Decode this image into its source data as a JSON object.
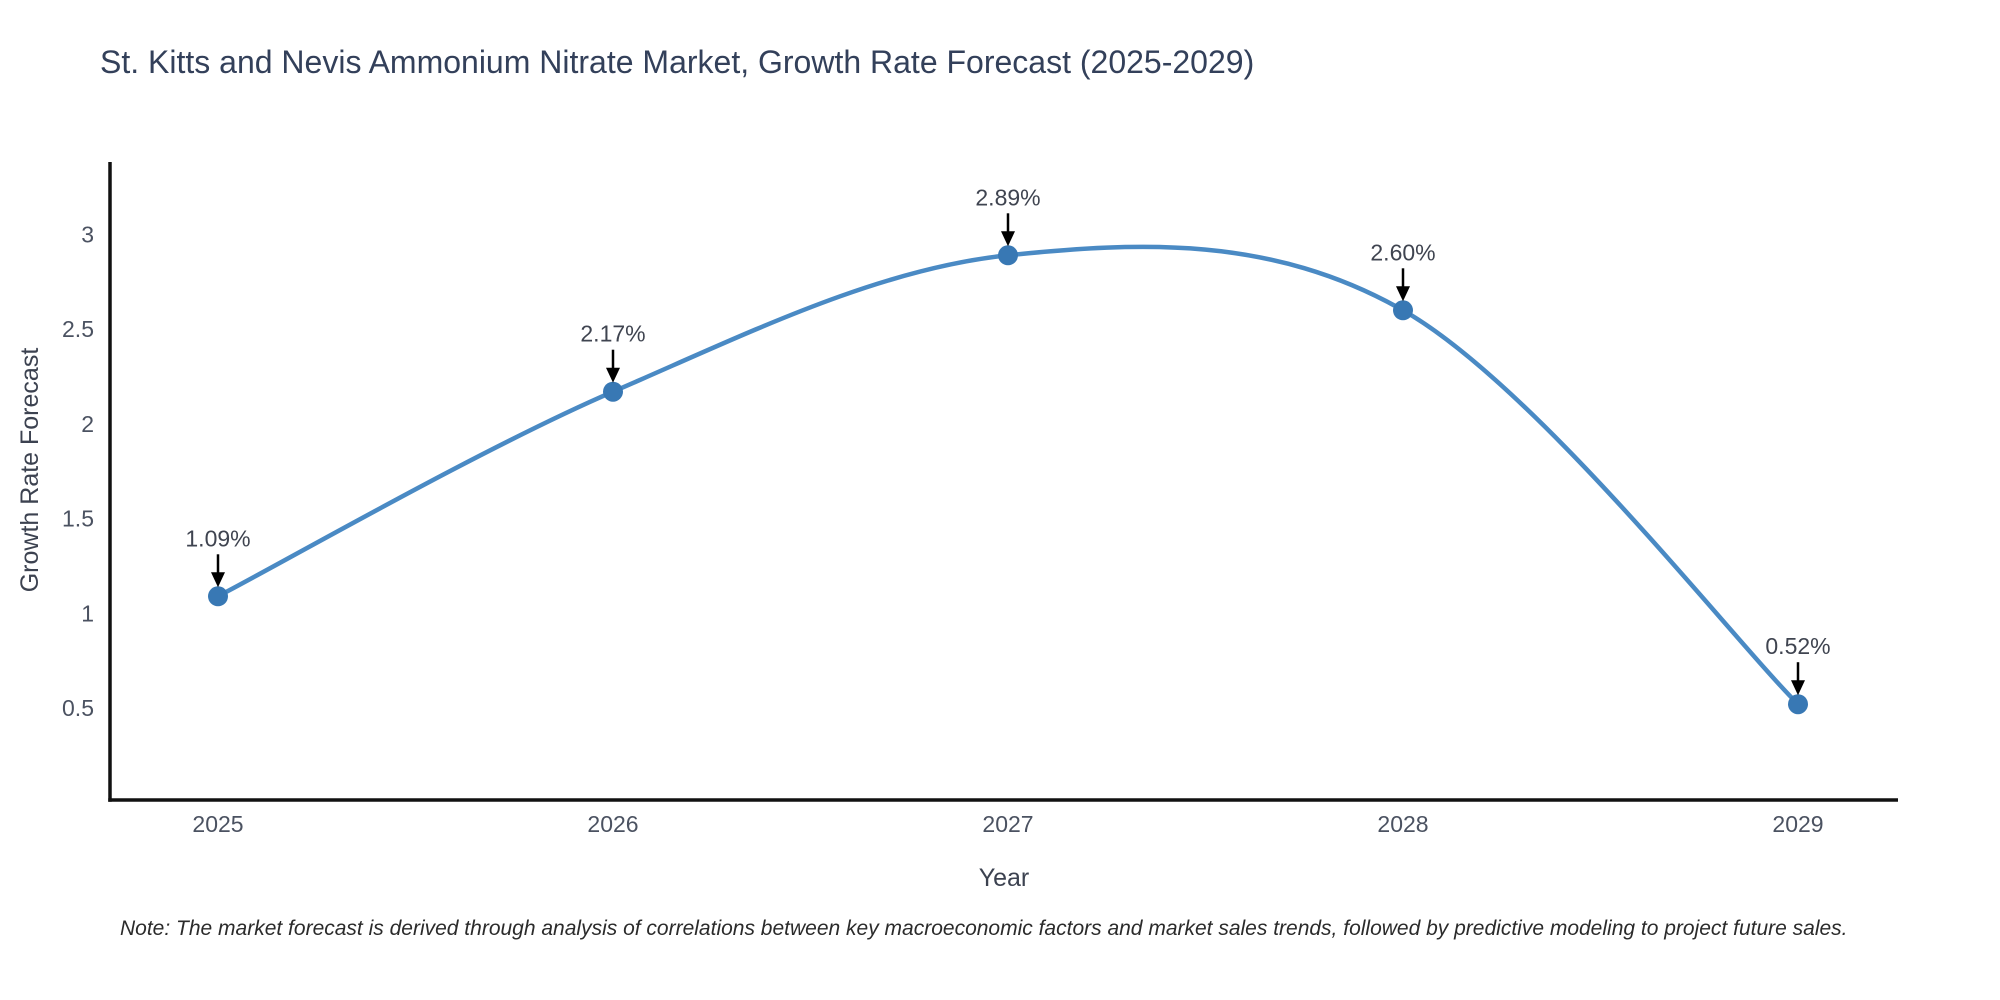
{
  "title": "St. Kitts and Nevis Ammonium Nitrate Market, Growth Rate Forecast (2025-2029)",
  "note": "Note: The market forecast is derived through analysis of correlations between key macroeconomic factors and market sales trends, followed by predictive modeling to project future sales.",
  "chart_data": {
    "type": "line",
    "title": "St. Kitts and Nevis Ammonium Nitrate Market, Growth Rate Forecast (2025-2029)",
    "categories": [
      "2025",
      "2026",
      "2027",
      "2028",
      "2029"
    ],
    "values": [
      1.09,
      2.17,
      2.89,
      2.6,
      0.52
    ],
    "point_labels": [
      "1.09%",
      "2.17%",
      "2.89%",
      "2.60%",
      "0.52%"
    ],
    "xlabel": "Year",
    "ylabel": "Growth Rate Forecast",
    "yticks": [
      0.5,
      1,
      1.5,
      2,
      2.5,
      3
    ],
    "ylim": [
      0,
      3.37
    ],
    "line_shape": "spline",
    "grid": false,
    "legend_position": "none",
    "annotations_style": "value-label-with-down-arrow",
    "colors": {
      "line": "#4a8ac4",
      "marker": "#3878b4",
      "axis_line": "#111111",
      "tick_label": "#4b5261",
      "axis_title": "#3c4250",
      "annotation_text": "#3f4450",
      "annotation_arrow": "#000000",
      "title_text": "#33405a",
      "background": "#ffffff"
    }
  }
}
